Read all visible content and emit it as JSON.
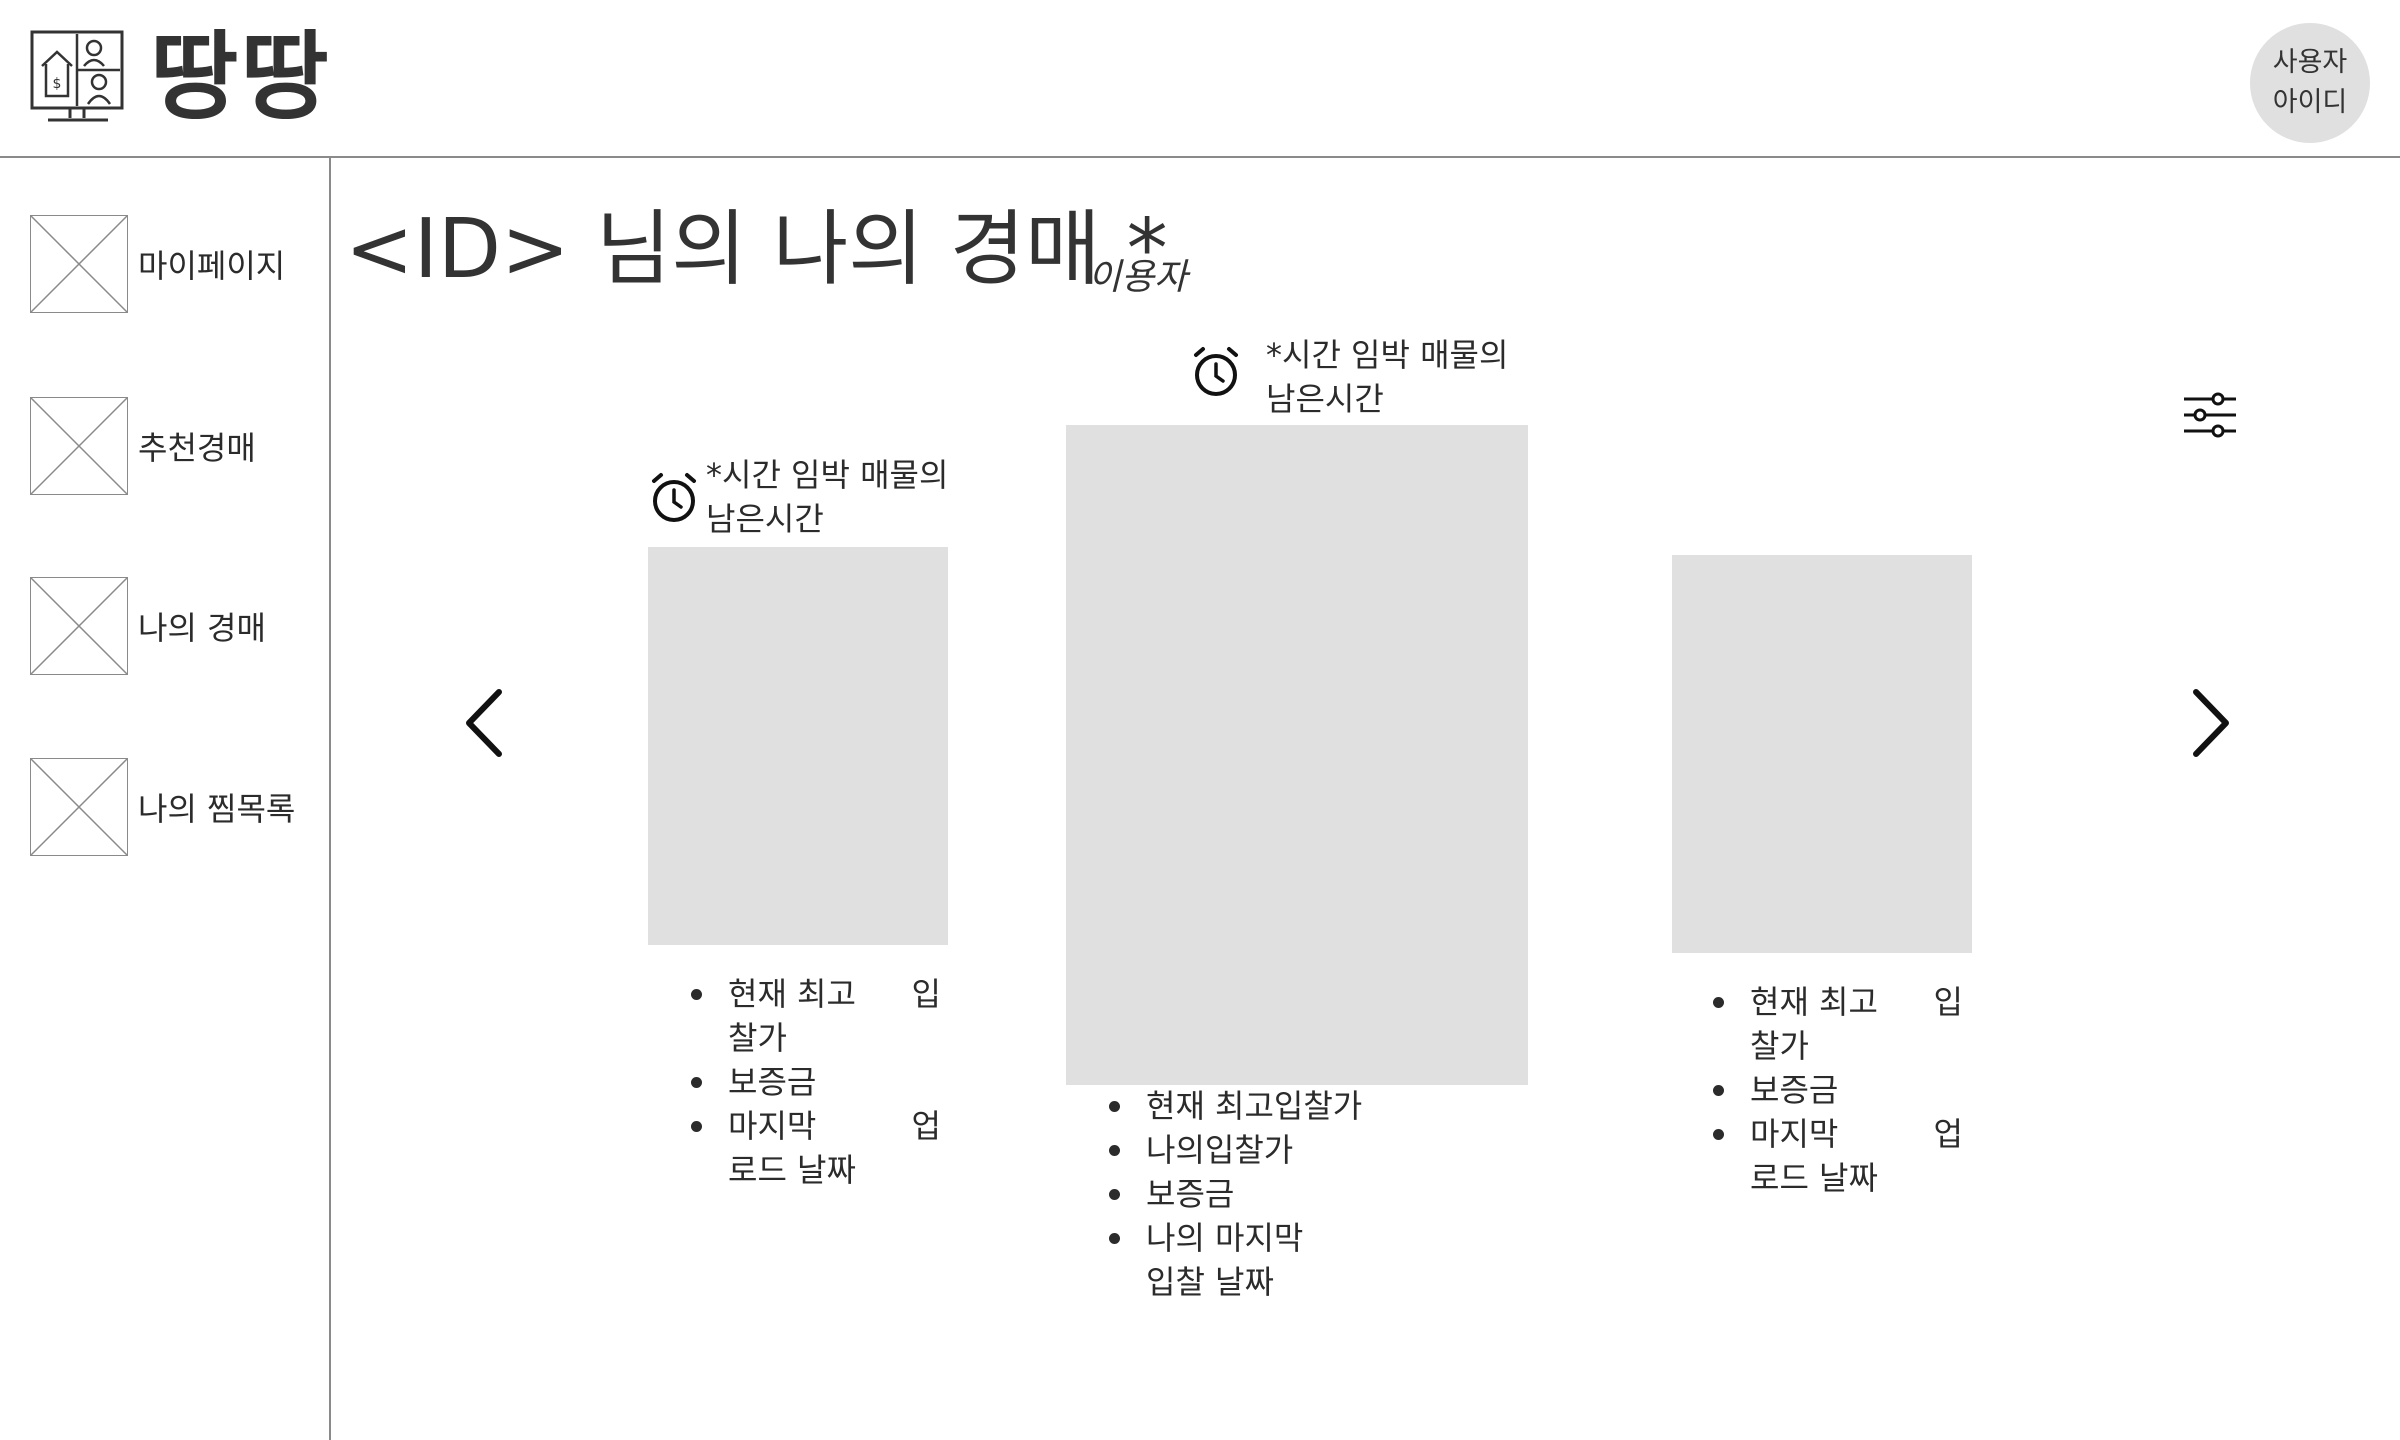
{
  "header": {
    "logo_text": "땅땅",
    "user_line1": "사용자",
    "user_line2": "아이디"
  },
  "sidebar": {
    "items": [
      {
        "label": "마이페이지"
      },
      {
        "label": "추천경매"
      },
      {
        "label": "나의 경매"
      },
      {
        "label": "나의 찜목록"
      }
    ]
  },
  "main": {
    "title": "<ID> 님의 나의 경매 *",
    "title_note": "이용자",
    "timer_line1": "*시간 임박 매물의",
    "timer_line2": "남은시간",
    "cards": [
      {
        "items": [
          {
            "left": "현재 최고",
            "right": "입",
            "cont": "찰가"
          },
          {
            "left": "보증금"
          },
          {
            "left": "마지막",
            "right": "업",
            "cont": "로드 날짜"
          }
        ]
      },
      {
        "items": [
          {
            "left": "현재 최고입찰가"
          },
          {
            "left": "나의입찰가"
          },
          {
            "left": "보증금"
          },
          {
            "left": "나의 마지막",
            "cont": "입찰 날짜"
          }
        ]
      },
      {
        "items": [
          {
            "left": "현재 최고",
            "right": "입",
            "cont": "찰가"
          },
          {
            "left": "보증금"
          },
          {
            "left": "마지막",
            "right": "업",
            "cont": "로드 날짜"
          }
        ]
      }
    ]
  },
  "icons": {
    "logo": "house-computer-logo-icon",
    "nav_thumb": "placeholder-image-icon",
    "timer": "alarm-clock-icon",
    "prev": "chevron-left-icon",
    "next": "chevron-right-icon",
    "filter": "sliders-filter-icon"
  },
  "colors": {
    "placeholder": "#e0e0e0",
    "divider": "#8a8a8a",
    "text": "#2b2b2b"
  }
}
